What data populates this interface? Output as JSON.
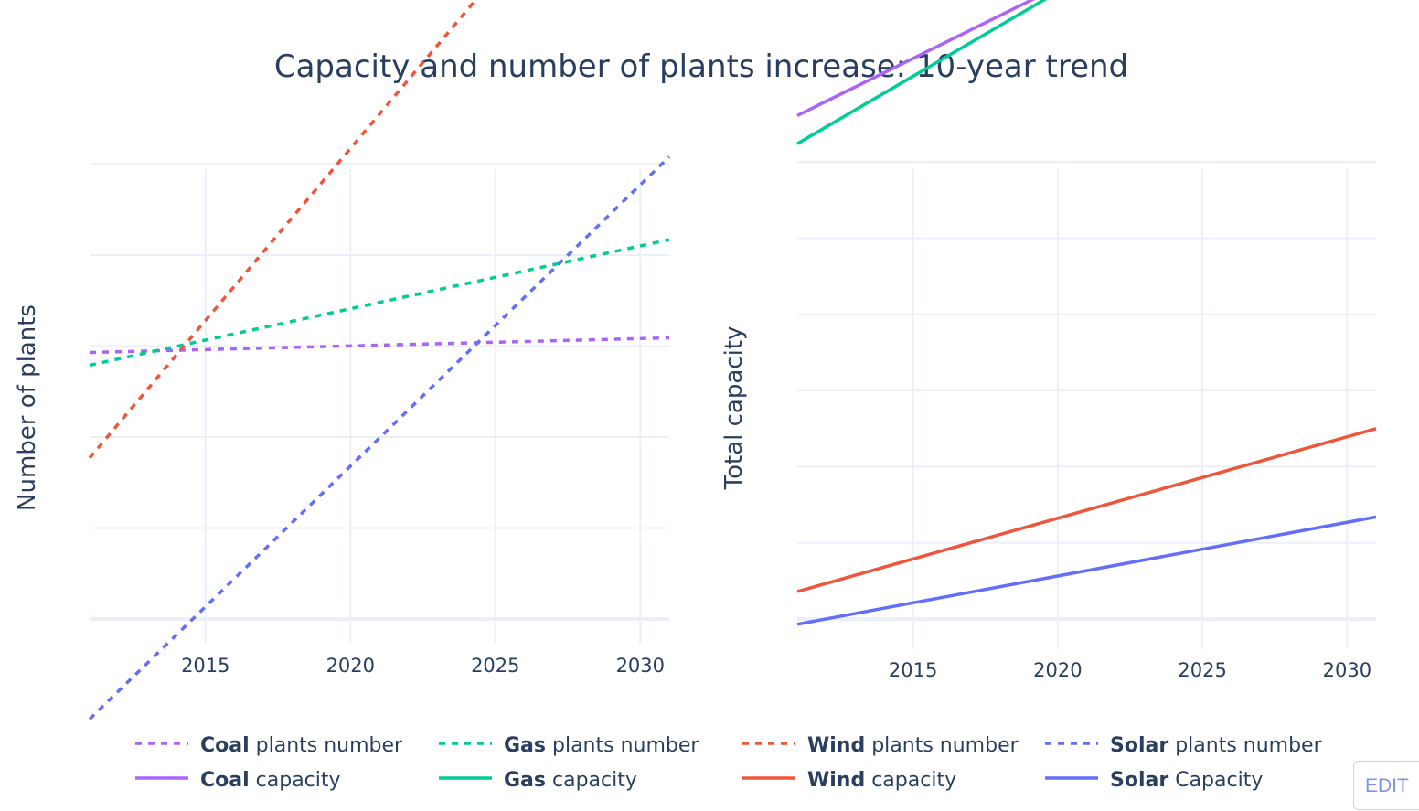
{
  "chart_data": [
    {
      "type": "line",
      "title": "Capacity and number of plants increase: 10-year trend",
      "xlabel": "",
      "ylabel": "Number of plants",
      "xlim": [
        2011,
        2031
      ],
      "x_ticks": [
        "2015",
        "2020",
        "2025",
        "2030"
      ],
      "grid": true,
      "series": [
        {
          "name_bold": "Coal",
          "name_rest": " plants number",
          "color": "#ab63fa",
          "dash": "dot",
          "x": [
            2011,
            2031
          ],
          "y": [
            2.93,
            3.09
          ]
        },
        {
          "name_bold": "Gas",
          "name_rest": " plants number",
          "color": "#00cc96",
          "dash": "dot",
          "x": [
            2011,
            2031
          ],
          "y": [
            2.79,
            4.17
          ]
        },
        {
          "name_bold": "Wind",
          "name_rest": " plants number",
          "color": "#ef553b",
          "dash": "dot",
          "x": [
            2011,
            2031
          ],
          "y": [
            1.77,
            9.33
          ]
        },
        {
          "name_bold": "Solar",
          "name_rest": " plants number",
          "color": "#636efa",
          "dash": "dot",
          "x": [
            2011,
            2031
          ],
          "y": [
            -1.1,
            5.08
          ]
        }
      ]
    },
    {
      "type": "line",
      "xlabel": "",
      "ylabel": "Total capacity",
      "xlim": [
        2011,
        2031
      ],
      "x_ticks": [
        "2015",
        "2020",
        "2025",
        "2030"
      ],
      "grid": true,
      "series": [
        {
          "name_bold": "Coal",
          "name_rest": " capacity",
          "color": "#ab63fa",
          "dash": "solid",
          "x": [
            2011,
            2031
          ],
          "y": [
            6.61,
            10.36
          ]
        },
        {
          "name_bold": "Gas",
          "name_rest": " capacity",
          "color": "#00cc96",
          "dash": "solid",
          "x": [
            2011,
            2031
          ],
          "y": [
            6.24,
            10.67
          ]
        },
        {
          "name_bold": "Wind",
          "name_rest": " capacity",
          "color": "#ef553b",
          "dash": "solid",
          "x": [
            2011,
            2031
          ],
          "y": [
            0.36,
            2.5
          ]
        },
        {
          "name_bold": "Solar",
          "name_rest": " Capacity",
          "color": "#636efa",
          "dash": "solid",
          "x": [
            2011,
            2031
          ],
          "y": [
            -0.07,
            1.34
          ]
        }
      ]
    }
  ],
  "edit_label": "EDIT"
}
